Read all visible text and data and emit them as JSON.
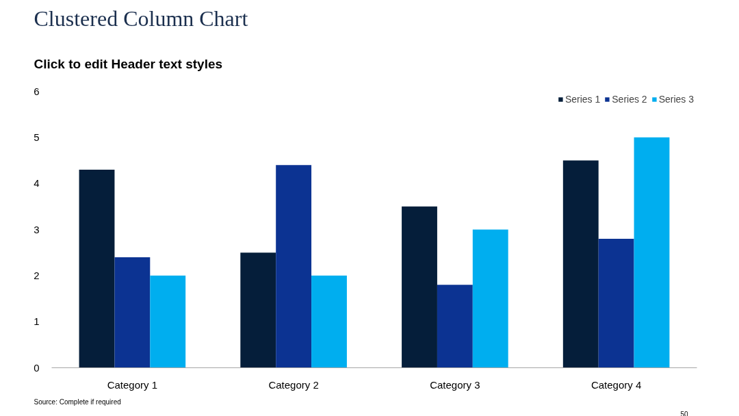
{
  "chart_data": {
    "type": "bar",
    "title": "Clustered Column Chart",
    "subtitle": "Click to edit Header text styles",
    "categories": [
      "Category 1",
      "Category 2",
      "Category 3",
      "Category 4"
    ],
    "series": [
      {
        "name": "Series 1",
        "color": "#051e3a",
        "values": [
          4.3,
          2.5,
          3.5,
          4.5
        ]
      },
      {
        "name": "Series 2",
        "color": "#0c3392",
        "values": [
          2.4,
          4.4,
          1.8,
          2.8
        ]
      },
      {
        "name": "Series 3",
        "color": "#00aeef",
        "values": [
          2,
          2,
          3,
          5
        ]
      }
    ],
    "ylim": [
      0,
      6
    ],
    "yticks": [
      0,
      1,
      2,
      3,
      4,
      5,
      6
    ],
    "grid": false,
    "legend": "top right",
    "annotations": [
      "Source: Complete if required",
      "50"
    ]
  }
}
